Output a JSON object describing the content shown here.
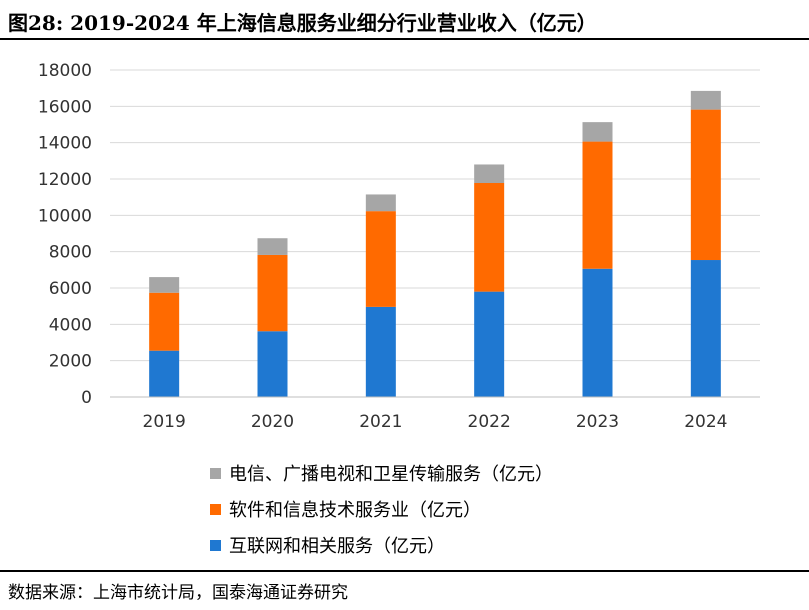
{
  "header": {
    "title": "图28:  2019-2024 年上海信息服务业细分行业营业收入（亿元）"
  },
  "footer": {
    "source": "数据来源：上海市统计局，国泰海通证券研究"
  },
  "chart_data": {
    "type": "bar",
    "stacked": true,
    "title": "2019-2024 年上海信息服务业细分行业营业收入（亿元）",
    "categories": [
      "2019",
      "2020",
      "2021",
      "2022",
      "2023",
      "2024"
    ],
    "series": [
      {
        "name": "互联网和相关服务（亿元）",
        "color": "#1F78D1",
        "values": [
          2550,
          3620,
          4960,
          5800,
          7060,
          7540
        ]
      },
      {
        "name": "软件和信息技术服务业（亿元）",
        "color": "#FF6A00",
        "values": [
          3190,
          4200,
          5270,
          5980,
          7000,
          8280
        ]
      },
      {
        "name": "电信、广播电视和卫星传输服务（亿元）",
        "color": "#A6A6A6",
        "values": [
          860,
          920,
          920,
          1020,
          1070,
          1030
        ]
      }
    ],
    "ylim": [
      0,
      18000
    ],
    "yticks": [
      0,
      2000,
      4000,
      6000,
      8000,
      10000,
      12000,
      14000,
      16000,
      18000
    ],
    "grid": true,
    "legend_order": [
      "电信、广播电视和卫星传输服务（亿元）",
      "软件和信息技术服务业（亿元）",
      "互联网和相关服务（亿元）"
    ]
  }
}
